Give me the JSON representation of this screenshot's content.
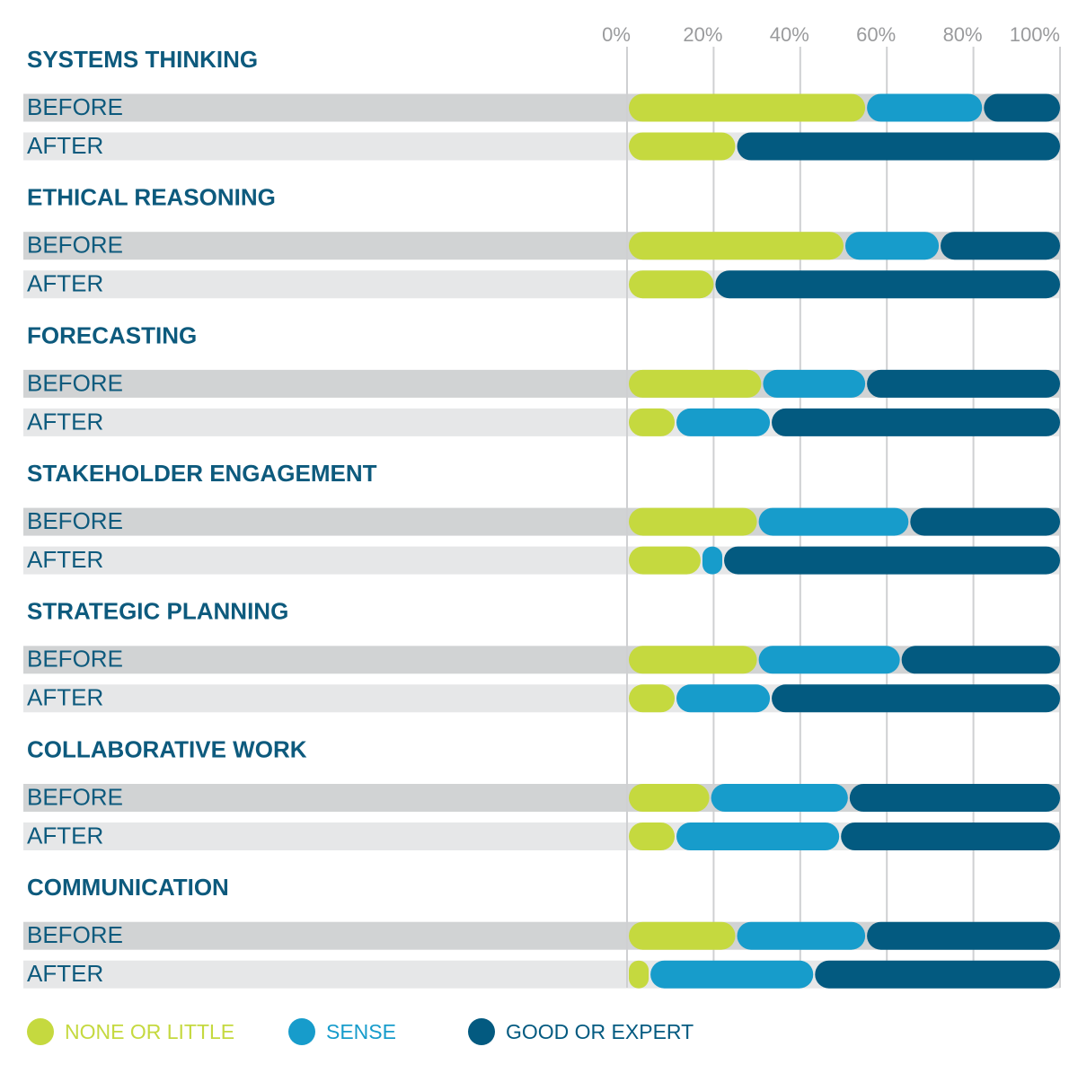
{
  "chart_data": {
    "type": "bar",
    "orientation": "horizontal",
    "stacked": true,
    "groups": [
      "SYSTEMS THINKING",
      "ETHICAL REASONING",
      "FORECASTING",
      "STAKEHOLDER ENGAGEMENT",
      "STRATEGIC PLANNING",
      "COLLABORATIVE WORK",
      "COMMUNICATION"
    ],
    "categories": [
      "BEFORE",
      "AFTER",
      "BEFORE",
      "AFTER",
      "BEFORE",
      "AFTER",
      "BEFORE",
      "AFTER",
      "BEFORE",
      "AFTER",
      "BEFORE",
      "AFTER",
      "BEFORE",
      "AFTER"
    ],
    "series": [
      {
        "name": "NONE OR LITTLE",
        "color": "#c5d93f",
        "values": [
          55,
          25,
          50,
          20,
          31,
          11,
          30,
          17,
          30,
          11,
          19,
          11,
          25,
          5
        ]
      },
      {
        "name": "SENSE",
        "color": "#179ccb",
        "values": [
          27,
          0,
          22,
          0,
          24,
          22,
          35,
          5,
          33,
          22,
          32,
          38,
          30,
          38
        ]
      },
      {
        "name": "GOOD OR EXPERT",
        "color": "#035a80",
        "values": [
          18,
          75,
          28,
          80,
          45,
          67,
          35,
          78,
          37,
          67,
          49,
          51,
          45,
          57
        ]
      }
    ],
    "xlim": [
      0,
      100
    ],
    "xticks": [
      {
        "value": 0,
        "label": "0%"
      },
      {
        "value": 20,
        "label": "20%"
      },
      {
        "value": 40,
        "label": "40%"
      },
      {
        "value": 60,
        "label": "60%"
      },
      {
        "value": 80,
        "label": "80%"
      },
      {
        "value": 100,
        "label": "100%"
      }
    ],
    "grid": true
  }
}
